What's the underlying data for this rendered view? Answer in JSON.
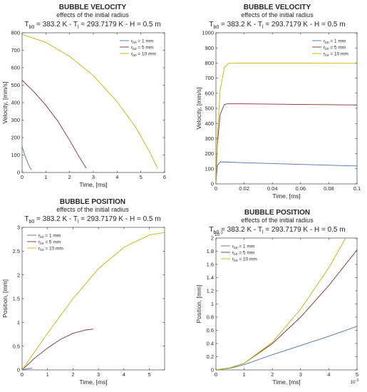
{
  "colors": [
    "#4a6fb5",
    "#8b2a2a",
    "#c8b400"
  ],
  "chart_data": [
    {
      "type": "line",
      "title": "BUBBLE VELOCITY",
      "subtitle": "effects of the initial radius",
      "conditions": {
        "pre": "T",
        "s1": "b0",
        "mid": " = 383.2 K - T",
        "s2": "l",
        "post": " = 293.7179 K - H = 0.5 m"
      },
      "xlabel": "Time, [ms]",
      "ylabel": "Velocity, [mm/s]",
      "xlim": [
        0,
        6
      ],
      "ylim": [
        0,
        800
      ],
      "xticks": [
        0,
        1,
        2,
        3,
        4,
        5,
        6
      ],
      "xtick_labels": [
        "0",
        "1",
        "2",
        "3",
        "4",
        "5",
        "6"
      ],
      "yticks": [
        0,
        100,
        200,
        300,
        400,
        500,
        600,
        700,
        800
      ],
      "ytick_labels": [
        "0",
        "100",
        "200",
        "300",
        "400",
        "500",
        "600",
        "700",
        "800"
      ],
      "x_exponent": "",
      "y_exponent": "",
      "legend_position": "top-right",
      "series": [
        {
          "name": "r",
          "sub": "b0",
          "suffix": " = 1 mm",
          "x": [
            0,
            0.02,
            0.1,
            0.2,
            0.3,
            0.4
          ],
          "y": [
            150,
            140,
            105,
            68,
            35,
            15
          ]
        },
        {
          "name": "r",
          "sub": "b0",
          "suffix": " = 5 mm",
          "x": [
            0,
            0.02,
            0.5,
            1.0,
            1.5,
            2.0,
            2.4,
            2.7
          ],
          "y": [
            530,
            525,
            462,
            385,
            295,
            185,
            90,
            25
          ]
        },
        {
          "name": "r",
          "sub": "b0",
          "suffix": " = 10 mm",
          "x": [
            0,
            0.02,
            1.0,
            2.0,
            3.0,
            4.0,
            4.8,
            5.4,
            5.7
          ],
          "y": [
            790,
            790,
            745,
            665,
            555,
            405,
            255,
            110,
            25
          ]
        }
      ]
    },
    {
      "type": "line",
      "title": "BUBBLE VELOCITY",
      "subtitle": "effects of the initial radius",
      "conditions": {
        "pre": "T",
        "s1": "b0",
        "mid": " = 383.2 K - T",
        "s2": "l",
        "post": " = 293.7179 K - H = 0.5 m"
      },
      "xlabel": "Time, [ms]",
      "ylabel": "Velocity, [mm/s]",
      "xlim": [
        0,
        0.1
      ],
      "ylim": [
        0,
        1000
      ],
      "xticks": [
        0,
        0.02,
        0.04,
        0.06,
        0.08,
        0.1
      ],
      "xtick_labels": [
        "0",
        "0.02",
        "0.04",
        "0.06",
        "0.08",
        "0.1"
      ],
      "yticks": [
        0,
        100,
        200,
        300,
        400,
        500,
        600,
        700,
        800,
        900,
        1000
      ],
      "ytick_labels": [
        "0",
        "100",
        "200",
        "300",
        "400",
        "500",
        "600",
        "700",
        "800",
        "900",
        "1000"
      ],
      "x_exponent": "",
      "y_exponent": "",
      "legend_position": "top-right",
      "series": [
        {
          "name": "r",
          "sub": "b0",
          "suffix": " = 1 mm",
          "x": [
            0,
            0.001,
            0.003,
            0.005,
            0.02,
            0.05,
            0.1
          ],
          "y": [
            0,
            120,
            145,
            145,
            140,
            132,
            118
          ]
        },
        {
          "name": "r",
          "sub": "b0",
          "suffix": " = 5 mm",
          "x": [
            0,
            0.001,
            0.003,
            0.006,
            0.008,
            0.02,
            0.05,
            0.1
          ],
          "y": [
            0,
            260,
            460,
            525,
            530,
            530,
            527,
            522
          ]
        },
        {
          "name": "r",
          "sub": "b0",
          "suffix": " = 10 mm",
          "x": [
            0,
            0.001,
            0.003,
            0.006,
            0.009,
            0.02,
            0.05,
            0.1
          ],
          "y": [
            0,
            300,
            620,
            770,
            798,
            800,
            800,
            798
          ]
        }
      ]
    },
    {
      "type": "line",
      "title": "BUBBLE POSITION",
      "subtitle": "effects of the initial radius",
      "conditions": {
        "pre": "T",
        "s1": "b0",
        "mid": " = 383.2 K - T",
        "s2": "l",
        "post": " = 293.7179 K - H = 0.5 m"
      },
      "xlabel": "Time, [ms]",
      "ylabel": "Position, [mm]",
      "xlim": [
        0,
        5.6
      ],
      "ylim": [
        0,
        3
      ],
      "xticks": [
        0,
        1,
        2,
        3,
        4,
        5
      ],
      "xtick_labels": [
        "0",
        "1",
        "2",
        "3",
        "4",
        "5"
      ],
      "yticks": [
        0,
        0.5,
        1,
        1.5,
        2,
        2.5,
        3
      ],
      "ytick_labels": [
        "0",
        "0.5",
        "1",
        "1.5",
        "2",
        "2.5",
        "3"
      ],
      "x_exponent": "",
      "y_exponent": "",
      "legend_position": "top-left",
      "series": [
        {
          "name": "r",
          "sub": "b0",
          "suffix": " = 1 mm",
          "x": [
            0,
            0.1,
            0.2,
            0.3,
            0.4
          ],
          "y": [
            0,
            0.013,
            0.025,
            0.032,
            0.035
          ]
        },
        {
          "name": "r",
          "sub": "b0",
          "suffix": " = 5 mm",
          "x": [
            0,
            0.5,
            1.0,
            1.5,
            2.0,
            2.5,
            2.8
          ],
          "y": [
            0,
            0.25,
            0.46,
            0.64,
            0.77,
            0.84,
            0.86
          ]
        },
        {
          "name": "r",
          "sub": "b0",
          "suffix": " = 10 mm",
          "x": [
            0,
            1.0,
            2.0,
            3.0,
            4.0,
            5.0,
            5.6
          ],
          "y": [
            0,
            0.77,
            1.5,
            2.13,
            2.58,
            2.84,
            2.89
          ]
        }
      ]
    },
    {
      "type": "line",
      "title": "BUBBLE POSITION",
      "subtitle": "effects of the initial radius",
      "conditions": {
        "pre": "T",
        "s1": "b0",
        "mid": " = 383.2 K - T",
        "s2": "l",
        "post": " = 293.7179 K - H = 0.5 m"
      },
      "xlabel": "Time, [ms]",
      "ylabel": "Position, [mm]",
      "xlim": [
        0,
        5
      ],
      "ylim": [
        0,
        2
      ],
      "xticks": [
        0,
        1,
        2,
        3,
        4,
        5
      ],
      "xtick_labels": [
        "0",
        "1",
        "2",
        "3",
        "4",
        "5"
      ],
      "yticks": [
        0,
        0.2,
        0.4,
        0.6,
        0.8,
        1,
        1.2,
        1.4,
        1.6,
        1.8,
        2
      ],
      "ytick_labels": [
        "0",
        "0.2",
        "0.4",
        "0.6",
        "0.8",
        "1",
        "1.2",
        "1.4",
        "1.6",
        "1.8",
        "2"
      ],
      "x_exponent": "10",
      "x_exponent_power": "-3",
      "y_exponent": "10",
      "y_exponent_power": "-3",
      "legend_position": "top-left",
      "series": [
        {
          "name": "r",
          "sub": "b0",
          "suffix": " = 1 mm",
          "x": [
            0,
            0.5,
            1.0,
            2.0,
            3.0,
            4.0,
            5.0
          ],
          "y": [
            0,
            0.025,
            0.08,
            0.23,
            0.37,
            0.51,
            0.66
          ]
        },
        {
          "name": "r",
          "sub": "b0",
          "suffix": " = 5 mm",
          "x": [
            0,
            0.5,
            1.0,
            2.0,
            3.0,
            4.0,
            5.0
          ],
          "y": [
            0,
            0.03,
            0.1,
            0.4,
            0.8,
            1.28,
            1.82
          ]
        },
        {
          "name": "r",
          "sub": "b0",
          "suffix": " = 10 mm",
          "x": [
            0,
            0.5,
            1.0,
            2.0,
            3.0,
            4.0,
            4.6
          ],
          "y": [
            0,
            0.03,
            0.1,
            0.42,
            0.92,
            1.55,
            2.0
          ]
        }
      ]
    }
  ]
}
